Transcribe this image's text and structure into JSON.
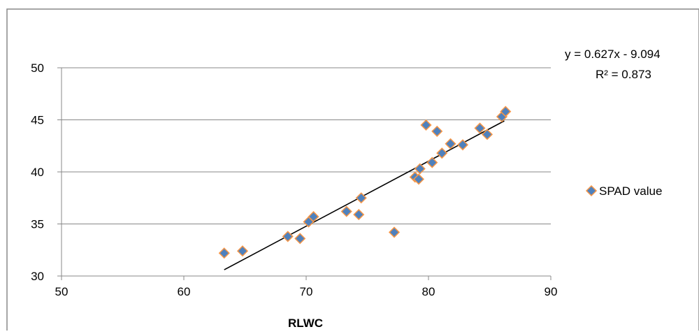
{
  "chart_data": {
    "type": "scatter",
    "xlabel": "RLWC",
    "ylabel": "",
    "xlim": [
      50,
      90
    ],
    "ylim": [
      30,
      50
    ],
    "xticks": [
      50,
      60,
      70,
      80,
      90
    ],
    "yticks": [
      30,
      35,
      40,
      45,
      50
    ],
    "grid": "horizontal",
    "legend_position": "right",
    "colors": {
      "marker_fill": "#4f81bd",
      "marker_edge": "#f79646",
      "trendline": "#000000",
      "gridline": "#888888"
    },
    "series": [
      {
        "name": "SPAD value",
        "points": [
          [
            63.3,
            32.2
          ],
          [
            64.8,
            32.4
          ],
          [
            68.5,
            33.8
          ],
          [
            69.5,
            33.6
          ],
          [
            70.2,
            35.2
          ],
          [
            70.6,
            35.7
          ],
          [
            73.3,
            36.2
          ],
          [
            74.3,
            35.9
          ],
          [
            74.5,
            37.5
          ],
          [
            77.2,
            34.2
          ],
          [
            78.9,
            39.5
          ],
          [
            79.2,
            39.3
          ],
          [
            79.3,
            40.3
          ],
          [
            79.8,
            44.5
          ],
          [
            80.3,
            40.9
          ],
          [
            80.7,
            43.9
          ],
          [
            81.1,
            41.8
          ],
          [
            81.8,
            42.7
          ],
          [
            82.8,
            42.6
          ],
          [
            84.2,
            44.2
          ],
          [
            84.8,
            43.6
          ],
          [
            86.0,
            45.3
          ],
          [
            86.3,
            45.8
          ]
        ]
      }
    ],
    "trendline": {
      "x_range": [
        63.3,
        86.2
      ],
      "y_range": [
        30.6,
        44.9
      ]
    },
    "annotations": {
      "equation": "y = 0.627x - 9.094",
      "r_squared": "R² = 0.873"
    }
  }
}
